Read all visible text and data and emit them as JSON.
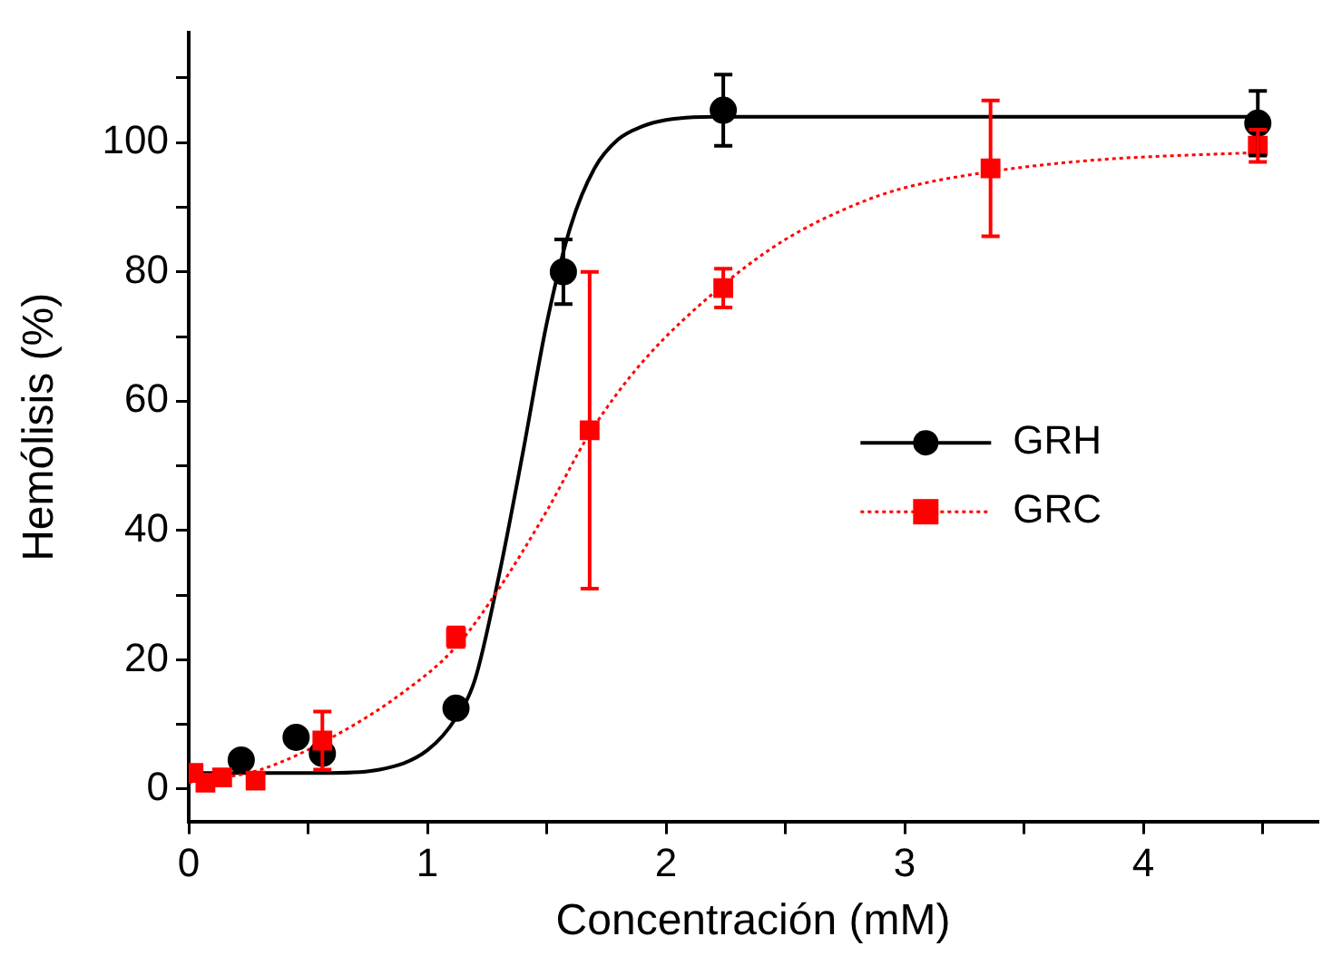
{
  "chart_data": {
    "type": "scatter",
    "xlabel": "Concentración (mM)",
    "ylabel": "Hemólisis (%)",
    "xlim": [
      0,
      4.73
    ],
    "ylim": [
      -5,
      117
    ],
    "xticks": [
      0,
      {
        "value": 0.5,
        "label": null
      },
      1,
      {
        "value": 1.5,
        "label": null
      },
      2,
      {
        "value": 2.5,
        "label": null
      },
      3,
      {
        "value": 3.5,
        "label": null
      },
      4,
      {
        "value": 4.5,
        "label": null
      }
    ],
    "yticks": [
      0,
      {
        "value": 10,
        "label": null
      },
      20,
      {
        "value": 30,
        "label": null
      },
      40,
      {
        "value": 50,
        "label": null
      },
      60,
      {
        "value": 70,
        "label": null
      },
      80,
      {
        "value": 90,
        "label": null
      },
      100,
      {
        "value": 110,
        "label": null
      }
    ],
    "grid": false,
    "legend": "right",
    "series": [
      {
        "type": "line",
        "color": "#000000",
        "line_style": "solid",
        "marker": "none",
        "x": [
          0,
          0.6,
          0.8,
          1.0,
          1.12,
          1.2,
          1.3,
          1.4,
          1.5,
          1.6,
          1.7,
          1.8,
          1.9,
          2.0,
          2.2,
          4.5
        ],
        "values": [
          2.5,
          2.5,
          3,
          6,
          11,
          17,
          33,
          52,
          72,
          87,
          96,
          100.5,
          102.5,
          103.5,
          104,
          104
        ]
      },
      {
        "type": "line",
        "color": "#ff0000",
        "line_style": "dotted",
        "marker": "none",
        "x": [
          0,
          0.3,
          0.6,
          0.9,
          1.12,
          1.3,
          1.5,
          1.68,
          1.9,
          2.24,
          2.5,
          2.8,
          3.0,
          3.36,
          3.8,
          4.5
        ],
        "values": [
          1,
          3,
          8,
          15,
          22,
          31,
          43,
          55,
          66,
          78,
          85,
          90.5,
          93,
          95.5,
          97.3,
          98.5
        ]
      },
      {
        "type": "scatter",
        "name": "GRH",
        "color": "#000000",
        "marker": "circle",
        "x": [
          0.22,
          0.45,
          0.56,
          1.12,
          1.57,
          2.24,
          4.48
        ],
        "values": [
          4.5,
          8,
          5.5,
          12.5,
          80,
          105,
          103
        ],
        "errors": [
          null,
          null,
          null,
          null,
          5,
          5.5,
          5
        ]
      },
      {
        "type": "scatter",
        "name": "GRC",
        "color": "#ff0000",
        "marker": "square",
        "x": [
          0.02,
          0.07,
          0.14,
          0.28,
          0.56,
          1.12,
          1.68,
          2.24,
          3.36,
          4.48
        ],
        "values": [
          2.5,
          1,
          1.8,
          1.3,
          7.5,
          23.5,
          55.5,
          77.5,
          96,
          99.5
        ],
        "errors": [
          null,
          null,
          null,
          null,
          4.5,
          1.5,
          24.5,
          3,
          10.5,
          2.5
        ]
      }
    ]
  }
}
